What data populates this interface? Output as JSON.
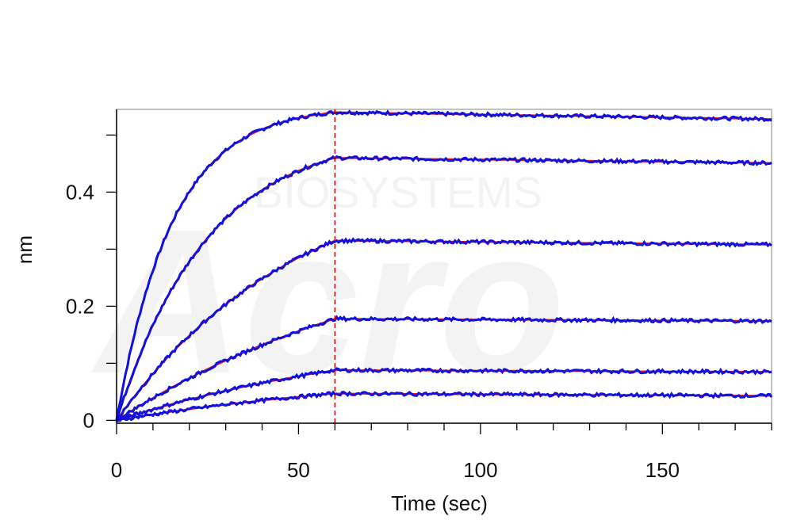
{
  "chart_data": {
    "type": "line",
    "title": "",
    "xlabel": "Time (sec)",
    "ylabel": "nm",
    "xlim": [
      0,
      180
    ],
    "ylim": [
      -0.005,
      0.545
    ],
    "x_ticks": [
      0,
      50,
      100,
      150
    ],
    "x_tick_labels": [
      "0",
      "50",
      "100",
      "150"
    ],
    "x_minor_step": 10,
    "y_ticks": [
      0,
      0.2,
      0.4
    ],
    "y_tick_labels": [
      "0",
      "0.2",
      "0.4"
    ],
    "y_minor_ticks": [
      0.1,
      0.3,
      0.5
    ],
    "grid": false,
    "legend": "none",
    "association_end": 60,
    "divider_color": "#e00000",
    "measured_color": "#1010e0",
    "fit_color": "#ee1111",
    "watermark_text": [
      "BIOSYSTEMS",
      "Acro"
    ],
    "series": [
      {
        "peak": 0.54,
        "k": 0.065,
        "end": 0.528
      },
      {
        "peak": 0.46,
        "k": 0.04,
        "end": 0.451
      },
      {
        "peak": 0.315,
        "k": 0.02,
        "end": 0.308
      },
      {
        "peak": 0.178,
        "k": 0.012,
        "end": 0.174
      },
      {
        "peak": 0.088,
        "k": 0.012,
        "end": 0.085
      },
      {
        "peak": 0.047,
        "k": 0.012,
        "end": 0.043
      }
    ]
  }
}
